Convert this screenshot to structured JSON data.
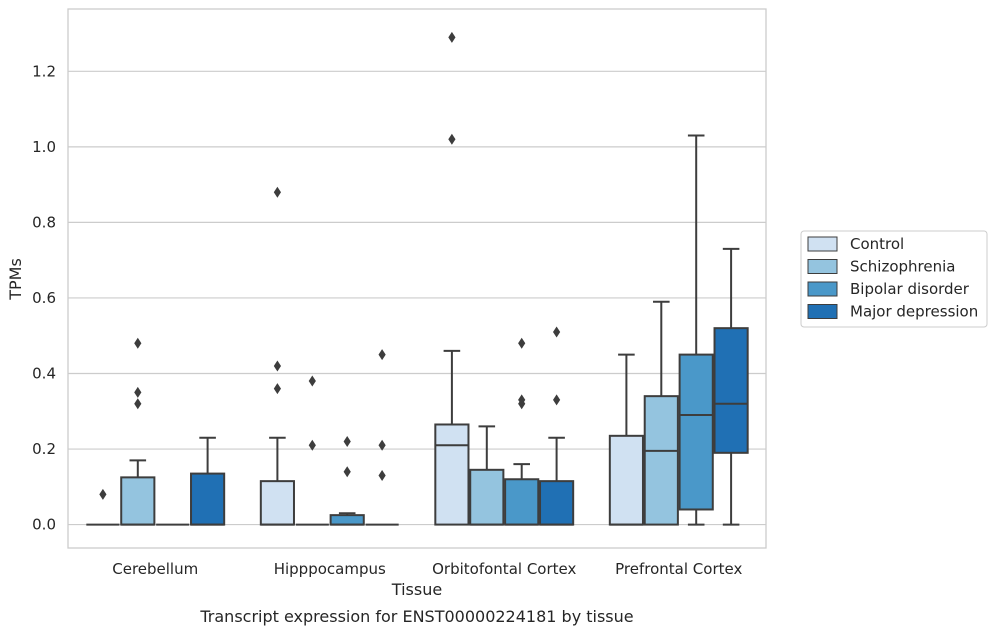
{
  "caption": "Transcript expression for ENST00000224181 by tissue",
  "chart_data": {
    "type": "boxplot",
    "xlabel": "Tissue",
    "ylabel": "TPMs",
    "ylim": [
      -0.062,
      1.365
    ],
    "yticks": [
      0.0,
      0.2,
      0.4,
      0.6,
      0.8,
      1.0,
      1.2
    ],
    "ytick_labels": [
      "0.0",
      "0.2",
      "0.4",
      "0.6",
      "0.8",
      "1.0",
      "1.2"
    ],
    "grid": true,
    "legend_position": "right",
    "categories": [
      "Cerebellum",
      "Hipppocampus",
      "Orbitofontal Cortex",
      "Prefrontal Cortex"
    ],
    "series": [
      {
        "name": "Control",
        "color": "#d0e1f2",
        "boxes": [
          {
            "q1": 0.0,
            "median": 0.0,
            "q3": 0.0,
            "whisker_low": 0.0,
            "whisker_high": 0.0,
            "outliers": [
              0.08
            ]
          },
          {
            "q1": 0.0,
            "median": 0.0,
            "q3": 0.115,
            "whisker_low": 0.0,
            "whisker_high": 0.23,
            "outliers": [
              0.36,
              0.42,
              0.88
            ]
          },
          {
            "q1": 0.0,
            "median": 0.21,
            "q3": 0.265,
            "whisker_low": 0.0,
            "whisker_high": 0.46,
            "outliers": [
              1.02,
              1.29
            ]
          },
          {
            "q1": 0.0,
            "median": 0.0,
            "q3": 0.235,
            "whisker_low": 0.0,
            "whisker_high": 0.45,
            "outliers": []
          }
        ]
      },
      {
        "name": "Schizophrenia",
        "color": "#94c4df",
        "boxes": [
          {
            "q1": 0.0,
            "median": 0.0,
            "q3": 0.125,
            "whisker_low": 0.0,
            "whisker_high": 0.17,
            "outliers": [
              0.32,
              0.35,
              0.48
            ]
          },
          {
            "q1": 0.0,
            "median": 0.0,
            "q3": 0.0,
            "whisker_low": 0.0,
            "whisker_high": 0.0,
            "outliers": [
              0.21,
              0.38
            ]
          },
          {
            "q1": 0.0,
            "median": 0.0,
            "q3": 0.145,
            "whisker_low": 0.0,
            "whisker_high": 0.26,
            "outliers": []
          },
          {
            "q1": 0.0,
            "median": 0.195,
            "q3": 0.34,
            "whisker_low": 0.0,
            "whisker_high": 0.59,
            "outliers": []
          }
        ]
      },
      {
        "name": "Bipolar disorder",
        "color": "#4a98c9",
        "boxes": [
          {
            "q1": 0.0,
            "median": 0.0,
            "q3": 0.0,
            "whisker_low": 0.0,
            "whisker_high": 0.0,
            "outliers": []
          },
          {
            "q1": 0.0,
            "median": 0.0,
            "q3": 0.025,
            "whisker_low": 0.0,
            "whisker_high": 0.03,
            "outliers": [
              0.14,
              0.22
            ]
          },
          {
            "q1": 0.0,
            "median": 0.0,
            "q3": 0.12,
            "whisker_low": 0.0,
            "whisker_high": 0.16,
            "outliers": [
              0.32,
              0.33,
              0.48
            ]
          },
          {
            "q1": 0.04,
            "median": 0.29,
            "q3": 0.45,
            "whisker_low": 0.0,
            "whisker_high": 1.03,
            "outliers": []
          }
        ]
      },
      {
        "name": "Major depression",
        "color": "#2070b4",
        "boxes": [
          {
            "q1": 0.0,
            "median": 0.0,
            "q3": 0.135,
            "whisker_low": 0.0,
            "whisker_high": 0.23,
            "outliers": []
          },
          {
            "q1": 0.0,
            "median": 0.0,
            "q3": 0.0,
            "whisker_low": 0.0,
            "whisker_high": 0.0,
            "outliers": [
              0.13,
              0.21,
              0.45
            ]
          },
          {
            "q1": 0.0,
            "median": 0.0,
            "q3": 0.115,
            "whisker_low": 0.0,
            "whisker_high": 0.23,
            "outliers": [
              0.33,
              0.51
            ]
          },
          {
            "q1": 0.19,
            "median": 0.32,
            "q3": 0.52,
            "whisker_low": 0.0,
            "whisker_high": 0.73,
            "outliers": []
          }
        ]
      }
    ]
  }
}
